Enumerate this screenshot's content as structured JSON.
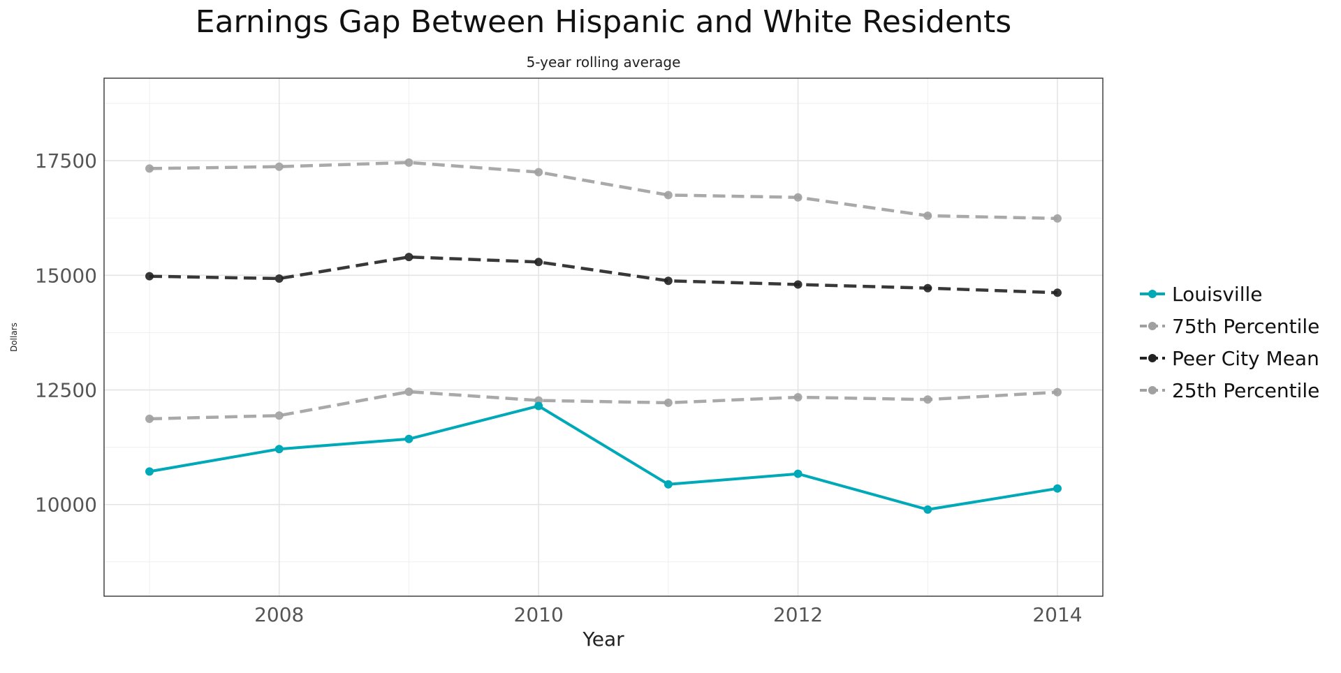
{
  "chart_data": {
    "type": "line",
    "title": "Earnings Gap Between Hispanic and White Residents",
    "subtitle": "5-year rolling average",
    "xlabel": "Year",
    "ylabel": "Dollars",
    "x": [
      2007,
      2008,
      2009,
      2010,
      2011,
      2012,
      2013,
      2014
    ],
    "x_ticks": [
      2008,
      2010,
      2012,
      2014
    ],
    "y_ticks": [
      10000,
      12500,
      15000,
      17500
    ],
    "xlim": [
      2006.65,
      2014.35
    ],
    "ylim": [
      8000,
      19300
    ],
    "grid": true,
    "legend_position": "right",
    "series": [
      {
        "name": "Louisville",
        "color": "#00a9b7",
        "style": "solid",
        "values": [
          10720,
          11210,
          11430,
          12150,
          10440,
          10670,
          9890,
          10350
        ]
      },
      {
        "name": "75th Percentile",
        "color": "#a0a0a0",
        "style": "dashed",
        "values": [
          17330,
          17370,
          17460,
          17250,
          16750,
          16700,
          16300,
          16240
        ]
      },
      {
        "name": "Peer City Mean",
        "color": "#222222",
        "style": "dashed",
        "values": [
          14980,
          14930,
          15400,
          15290,
          14880,
          14800,
          14720,
          14620
        ]
      },
      {
        "name": "25th Percentile",
        "color": "#a0a0a0",
        "style": "dashed",
        "values": [
          11870,
          11940,
          12460,
          12270,
          12220,
          12340,
          12290,
          12450
        ]
      }
    ]
  }
}
